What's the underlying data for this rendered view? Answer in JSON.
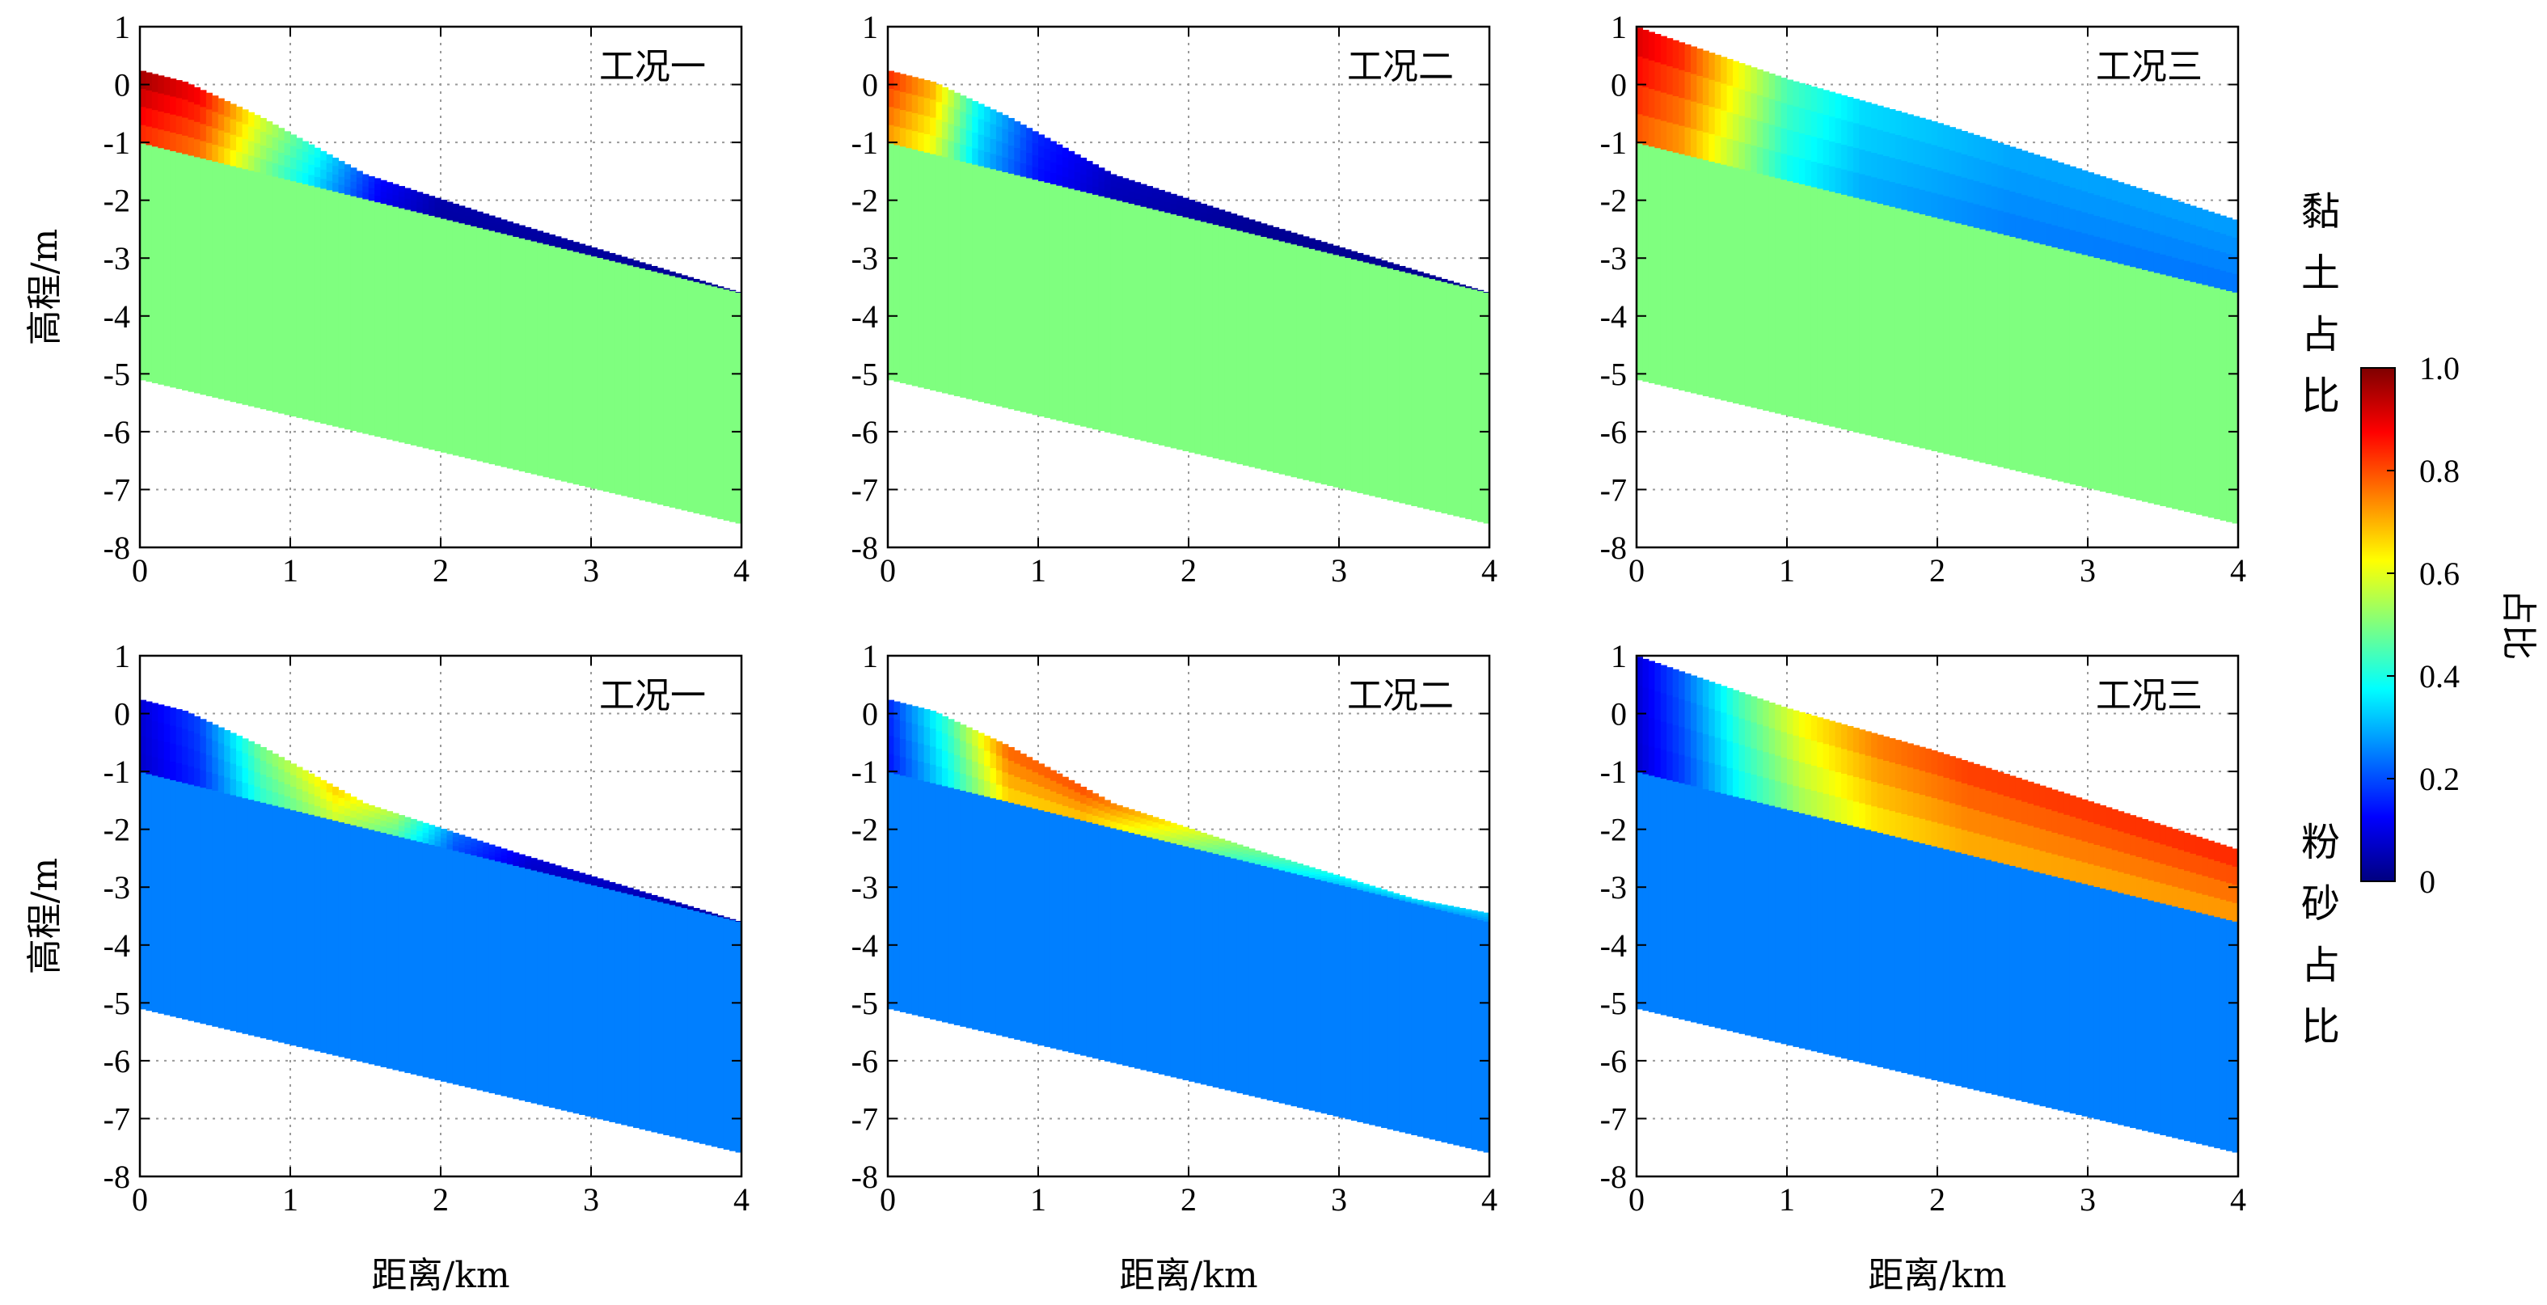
{
  "chart_data": {
    "type": "heatmap",
    "xlabel": "距离/km",
    "ylabel": "高程/m",
    "xlim": [
      0,
      4
    ],
    "ylim": [
      -8,
      1
    ],
    "xticks": [
      0,
      1,
      2,
      3,
      4
    ],
    "yticks": [
      1,
      0,
      -1,
      -2,
      -3,
      -4,
      -5,
      -6,
      -7,
      -8
    ],
    "grid": true,
    "colorbar": {
      "label": "占比",
      "range": [
        0,
        1
      ],
      "ticks": [
        {
          "value": 1.0,
          "label": "1.0"
        },
        {
          "value": 0.8,
          "label": "0.8"
        },
        {
          "value": 0.6,
          "label": "0.6"
        },
        {
          "value": 0.4,
          "label": "0.4"
        },
        {
          "value": 0.2,
          "label": "0.2"
        },
        {
          "value": 0.0,
          "label": "0"
        }
      ],
      "colormap": "jet",
      "stops": [
        "#00007f",
        "#0000ff",
        "#007fff",
        "#00ffff",
        "#7fff7f",
        "#ffff00",
        "#ff7f00",
        "#ff0000",
        "#7f0000"
      ]
    },
    "rows": [
      {
        "label": "黏土占比",
        "panels": [
          {
            "title": "工况一",
            "surface": [
              [
                0,
                0.25
              ],
              [
                0.3,
                0.05
              ],
              [
                0.8,
                -0.55
              ],
              [
                1.5,
                -1.55
              ],
              [
                2.5,
                -2.4
              ],
              [
                3.5,
                -3.2
              ],
              [
                4,
                -3.6
              ]
            ],
            "interface": [
              [
                0,
                -1.0
              ],
              [
                4,
                -3.6
              ]
            ],
            "base": [
              [
                0,
                -5.1
              ],
              [
                4,
                -7.6
              ]
            ],
            "substrate_fraction": 0.5,
            "layer_fraction_profile": [
              [
                0,
                0.9
              ],
              [
                0.4,
                0.82
              ],
              [
                0.8,
                0.55
              ],
              [
                1.2,
                0.35
              ],
              [
                1.6,
                0.12
              ],
              [
                2.0,
                0.04
              ],
              [
                4,
                0.02
              ]
            ]
          },
          {
            "title": "工况二",
            "surface": [
              [
                0,
                0.25
              ],
              [
                0.3,
                0.05
              ],
              [
                0.8,
                -0.55
              ],
              [
                1.5,
                -1.55
              ],
              [
                2.5,
                -2.4
              ],
              [
                3.5,
                -3.2
              ],
              [
                4,
                -3.6
              ]
            ],
            "interface": [
              [
                0,
                -1.0
              ],
              [
                4,
                -3.6
              ]
            ],
            "base": [
              [
                0,
                -5.1
              ],
              [
                4,
                -7.6
              ]
            ],
            "substrate_fraction": 0.5,
            "layer_fraction_profile": [
              [
                0,
                0.78
              ],
              [
                0.3,
                0.65
              ],
              [
                0.6,
                0.35
              ],
              [
                1.0,
                0.15
              ],
              [
                1.5,
                0.06
              ],
              [
                2.5,
                0.02
              ],
              [
                4,
                0.02
              ]
            ]
          },
          {
            "title": "工况三",
            "surface": [
              [
                0,
                1.0
              ],
              [
                1,
                0.1
              ],
              [
                2,
                -0.65
              ],
              [
                3,
                -1.5
              ],
              [
                4,
                -2.35
              ]
            ],
            "interface": [
              [
                0,
                -1.0
              ],
              [
                4,
                -3.6
              ]
            ],
            "base": [
              [
                0,
                -5.1
              ],
              [
                4,
                -7.6
              ]
            ],
            "substrate_fraction": 0.5,
            "layer_fraction_profile": [
              [
                0,
                0.85
              ],
              [
                0.3,
                0.78
              ],
              [
                0.6,
                0.62
              ],
              [
                1.0,
                0.42
              ],
              [
                1.5,
                0.32
              ],
              [
                2.5,
                0.27
              ],
              [
                4,
                0.26
              ]
            ]
          }
        ]
      },
      {
        "label": "粉砂占比",
        "panels": [
          {
            "title": "工况一",
            "surface": [
              [
                0,
                0.25
              ],
              [
                0.3,
                0.05
              ],
              [
                0.8,
                -0.55
              ],
              [
                1.5,
                -1.55
              ],
              [
                2.5,
                -2.4
              ],
              [
                3.5,
                -3.2
              ],
              [
                4,
                -3.6
              ]
            ],
            "interface": [
              [
                0,
                -1.0
              ],
              [
                4,
                -3.6
              ]
            ],
            "base": [
              [
                0,
                -5.1
              ],
              [
                4,
                -7.6
              ]
            ],
            "substrate_fraction": 0.25,
            "layer_fraction_profile": [
              [
                0,
                0.08
              ],
              [
                0.4,
                0.18
              ],
              [
                0.8,
                0.45
              ],
              [
                1.3,
                0.62
              ],
              [
                1.7,
                0.5
              ],
              [
                2.1,
                0.22
              ],
              [
                2.6,
                0.08
              ],
              [
                4,
                0.04
              ]
            ]
          },
          {
            "title": "工况二",
            "surface": [
              [
                0,
                0.25
              ],
              [
                0.3,
                0.05
              ],
              [
                0.8,
                -0.55
              ],
              [
                1.5,
                -1.55
              ],
              [
                2.5,
                -2.4
              ],
              [
                3.5,
                -3.2
              ],
              [
                4,
                -3.45
              ]
            ],
            "interface": [
              [
                0,
                -1.0
              ],
              [
                4,
                -3.6
              ]
            ],
            "base": [
              [
                0,
                -5.1
              ],
              [
                4,
                -7.6
              ]
            ],
            "substrate_fraction": 0.25,
            "layer_fraction_profile": [
              [
                0,
                0.15
              ],
              [
                0.4,
                0.4
              ],
              [
                0.8,
                0.72
              ],
              [
                1.3,
                0.74
              ],
              [
                1.8,
                0.62
              ],
              [
                2.3,
                0.48
              ],
              [
                3.0,
                0.35
              ],
              [
                4,
                0.3
              ]
            ]
          },
          {
            "title": "工况三",
            "surface": [
              [
                0,
                1.0
              ],
              [
                1,
                0.1
              ],
              [
                2,
                -0.65
              ],
              [
                3,
                -1.5
              ],
              [
                4,
                -2.35
              ]
            ],
            "interface": [
              [
                0,
                -1.0
              ],
              [
                4,
                -3.6
              ]
            ],
            "base": [
              [
                0,
                -5.1
              ],
              [
                4,
                -7.6
              ]
            ],
            "substrate_fraction": 0.25,
            "layer_fraction_profile": [
              [
                0,
                0.08
              ],
              [
                0.3,
                0.2
              ],
              [
                0.7,
                0.42
              ],
              [
                1.1,
                0.58
              ],
              [
                1.6,
                0.7
              ],
              [
                2.2,
                0.76
              ],
              [
                4,
                0.78
              ]
            ]
          }
        ]
      }
    ]
  }
}
